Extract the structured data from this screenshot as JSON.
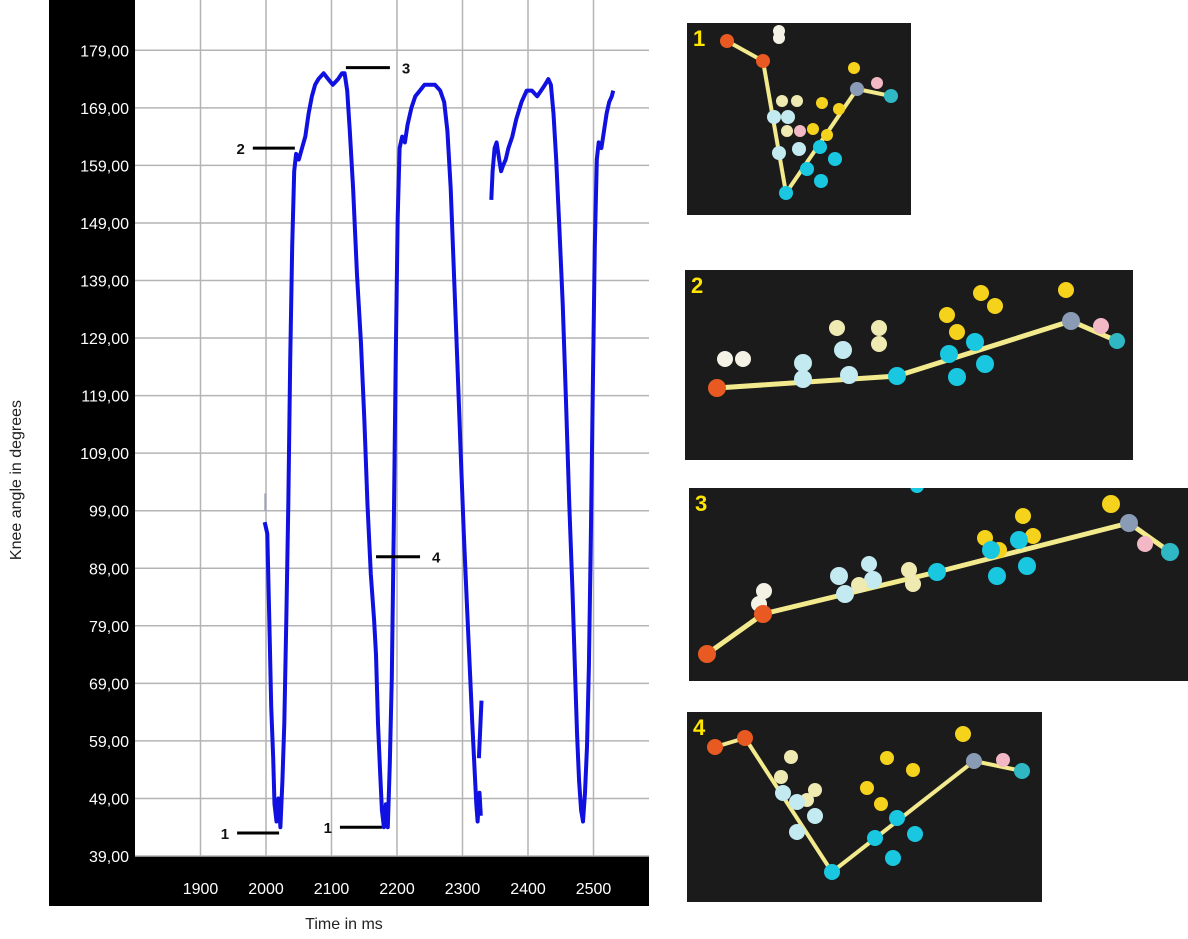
{
  "chart_data": {
    "type": "line",
    "title": "",
    "xlabel": "Time in ms",
    "ylabel": "Knee angle in degrees",
    "xlim": [
      1800,
      2530
    ],
    "ylim": [
      39,
      181
    ],
    "y_ticks": [
      "179,00",
      "169,00",
      "159,00",
      "149,00",
      "139,00",
      "129,00",
      "119,00",
      "109,00",
      "99,00",
      "89,00",
      "79,00",
      "69,00",
      "59,00",
      "49,00",
      "39,00"
    ],
    "y_tick_values": [
      179,
      169,
      159,
      149,
      139,
      129,
      119,
      109,
      99,
      89,
      79,
      69,
      59,
      49,
      39
    ],
    "x_ticks": [
      "1900",
      "2000",
      "2100",
      "2200",
      "2300",
      "2400",
      "2500"
    ],
    "x_tick_values": [
      1900,
      2000,
      2100,
      2200,
      2300,
      2400,
      2500
    ],
    "grid": true,
    "series": [
      {
        "color": "#1010e0",
        "segments": [
          [
            [
              1998,
              97
            ],
            [
              2002,
              95
            ],
            [
              2005,
              80
            ],
            [
              2008,
              65
            ],
            [
              2011,
              56
            ],
            [
              2013,
              48
            ],
            [
              2016,
              45
            ],
            [
              2019,
              49
            ],
            [
              2022,
              44
            ],
            [
              2025,
              52
            ],
            [
              2028,
              62
            ],
            [
              2031,
              80
            ],
            [
              2034,
              100
            ],
            [
              2037,
              125
            ],
            [
              2040,
              145
            ],
            [
              2043,
              158
            ],
            [
              2046,
              161
            ],
            [
              2050,
              160
            ],
            [
              2055,
              162
            ],
            [
              2060,
              164
            ],
            [
              2065,
              168
            ],
            [
              2070,
              171
            ],
            [
              2075,
              173
            ],
            [
              2080,
              174
            ],
            [
              2088,
              175
            ],
            [
              2095,
              174
            ],
            [
              2102,
              173
            ],
            [
              2110,
              174
            ],
            [
              2116,
              175
            ],
            [
              2120,
              175
            ],
            [
              2124,
              172
            ],
            [
              2128,
              165
            ],
            [
              2133,
              155
            ],
            [
              2139,
              140
            ],
            [
              2145,
              128
            ],
            [
              2150,
              115
            ],
            [
              2155,
              100
            ],
            [
              2160,
              88
            ],
            [
              2165,
              80
            ],
            [
              2168,
              74
            ],
            [
              2171,
              62
            ],
            [
              2174,
              54
            ],
            [
              2177,
              47
            ],
            [
              2180,
              44
            ],
            [
              2183,
              48
            ],
            [
              2186,
              44
            ],
            [
              2189,
              55
            ],
            [
              2192,
              70
            ],
            [
              2195,
              95
            ],
            [
              2198,
              125
            ],
            [
              2201,
              150
            ],
            [
              2204,
              162
            ],
            [
              2208,
              164
            ],
            [
              2212,
              163
            ],
            [
              2216,
              166
            ],
            [
              2222,
              169
            ],
            [
              2228,
              171
            ],
            [
              2235,
              172
            ],
            [
              2242,
              173
            ],
            [
              2250,
              173
            ],
            [
              2258,
              173
            ],
            [
              2266,
              172
            ],
            [
              2272,
              170
            ],
            [
              2277,
              165
            ],
            [
              2282,
              155
            ],
            [
              2287,
              140
            ],
            [
              2292,
              125
            ],
            [
              2297,
              110
            ],
            [
              2302,
              95
            ],
            [
              2307,
              82
            ],
            [
              2311,
              72
            ],
            [
              2315,
              62
            ],
            [
              2318,
              55
            ],
            [
              2321,
              48
            ],
            [
              2323,
              45
            ],
            [
              2326,
              50
            ],
            [
              2328,
              46
            ]
          ],
          [
            [
              2325,
              56
            ],
            [
              2329,
              66
            ]
          ],
          [
            [
              2344,
              153
            ],
            [
              2346,
              158
            ],
            [
              2349,
              162
            ],
            [
              2352,
              163
            ],
            [
              2356,
              160
            ],
            [
              2359,
              158
            ],
            [
              2362,
              159
            ],
            [
              2366,
              160
            ],
            [
              2370,
              162
            ],
            [
              2376,
              164
            ],
            [
              2382,
              167
            ],
            [
              2390,
              170
            ],
            [
              2398,
              172
            ],
            [
              2406,
              172
            ],
            [
              2414,
              171
            ],
            [
              2420,
              172
            ],
            [
              2426,
              173
            ],
            [
              2431,
              174
            ],
            [
              2435,
              173
            ],
            [
              2439,
              168
            ],
            [
              2443,
              160
            ],
            [
              2448,
              148
            ],
            [
              2453,
              135
            ],
            [
              2458,
              118
            ],
            [
              2463,
              100
            ],
            [
              2468,
              85
            ],
            [
              2472,
              70
            ],
            [
              2475,
              60
            ],
            [
              2478,
              52
            ],
            [
              2481,
              47
            ],
            [
              2484,
              45
            ],
            [
              2487,
              50
            ],
            [
              2490,
              58
            ],
            [
              2493,
              72
            ],
            [
              2496,
              95
            ],
            [
              2499,
              120
            ],
            [
              2502,
              145
            ],
            [
              2505,
              160
            ],
            [
              2508,
              163
            ],
            [
              2512,
              162
            ],
            [
              2516,
              165
            ],
            [
              2520,
              168
            ],
            [
              2524,
              170
            ],
            [
              2528,
              171
            ],
            [
              2530,
              172
            ]
          ]
        ]
      }
    ],
    "annotations": [
      {
        "label": "1",
        "x": 2020,
        "y": 43
      },
      {
        "label": "1",
        "x": 2177,
        "y": 44
      },
      {
        "label": "2",
        "x": 2044,
        "y": 162
      },
      {
        "label": "3",
        "x": 2122,
        "y": 176
      },
      {
        "label": "4",
        "x": 2168,
        "y": 91
      }
    ]
  },
  "panels": [
    {
      "label": "1"
    },
    {
      "label": "2"
    },
    {
      "label": "3"
    },
    {
      "label": "4"
    }
  ],
  "colors": {
    "plot_background": "#ffffff",
    "frame_background": "#000000",
    "grid": "#b4b4b4",
    "series": "#1010e0",
    "panel_background": "#1b1b1b",
    "panel_number": "#ffe600",
    "bone": "#f2ea8c",
    "joint_orange": "#e85a22",
    "joint_cyan": "#19c8e0",
    "joint_gray": "#8a9bb5",
    "joint_teal": "#2fb8c4",
    "marker_yellow": "#f5d21c",
    "marker_cream": "#efe9b2",
    "marker_lightblue": "#c2eaf0",
    "marker_pink": "#f3b8c6",
    "marker_white": "#f4f2e4"
  }
}
